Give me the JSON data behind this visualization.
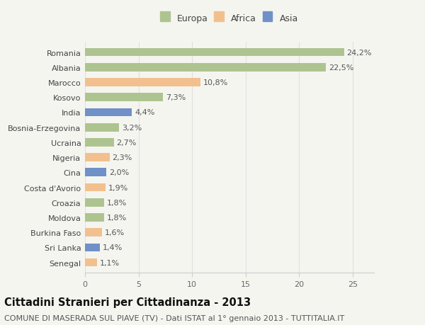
{
  "categories": [
    "Romania",
    "Albania",
    "Marocco",
    "Kosovo",
    "India",
    "Bosnia-Erzegovina",
    "Ucraina",
    "Nigeria",
    "Cina",
    "Costa d'Avorio",
    "Croazia",
    "Moldova",
    "Burkina Faso",
    "Sri Lanka",
    "Senegal"
  ],
  "values": [
    24.2,
    22.5,
    10.8,
    7.3,
    4.4,
    3.2,
    2.7,
    2.3,
    2.0,
    1.9,
    1.8,
    1.8,
    1.6,
    1.4,
    1.1
  ],
  "labels": [
    "24,2%",
    "22,5%",
    "10,8%",
    "7,3%",
    "4,4%",
    "3,2%",
    "2,7%",
    "2,3%",
    "2,0%",
    "1,9%",
    "1,8%",
    "1,8%",
    "1,6%",
    "1,4%",
    "1,1%"
  ],
  "continents": [
    "Europa",
    "Europa",
    "Africa",
    "Europa",
    "Asia",
    "Europa",
    "Europa",
    "Africa",
    "Asia",
    "Africa",
    "Europa",
    "Europa",
    "Africa",
    "Asia",
    "Africa"
  ],
  "continent_colors": {
    "Europa": "#aec490",
    "Africa": "#f2c08e",
    "Asia": "#7090c8"
  },
  "legend_labels": [
    "Europa",
    "Africa",
    "Asia"
  ],
  "legend_colors": [
    "#aec490",
    "#f2c08e",
    "#7090c8"
  ],
  "title": "Cittadini Stranieri per Cittadinanza - 2013",
  "subtitle": "COMUNE DI MASERADA SUL PIAVE (TV) - Dati ISTAT al 1° gennaio 2013 - TUTTITALIA.IT",
  "xlim": [
    0,
    27
  ],
  "xticks": [
    0,
    5,
    10,
    15,
    20,
    25
  ],
  "background_color": "#f5f5f0",
  "plot_bg_color": "#f5f5f0",
  "bar_height": 0.55,
  "title_fontsize": 10.5,
  "subtitle_fontsize": 8,
  "label_fontsize": 8,
  "tick_fontsize": 8,
  "legend_fontsize": 9
}
